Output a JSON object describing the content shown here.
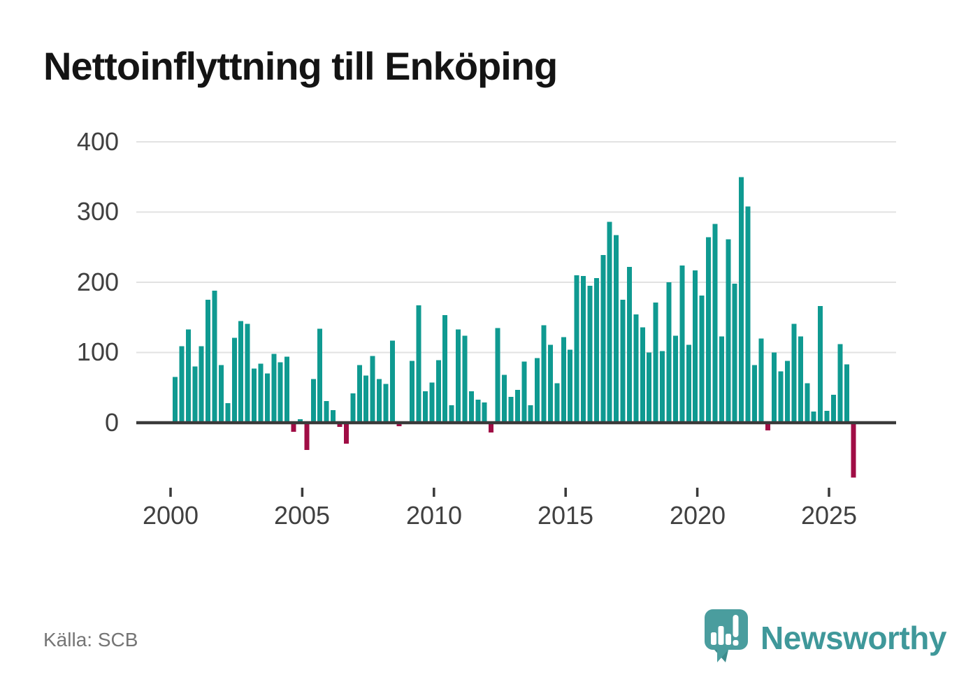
{
  "page": {
    "title": "Nettoinflyttning till Enköping",
    "source": "Källa: SCB",
    "branding": {
      "name": "Newsworthy",
      "icon": "newsworthy-speech-bubble-chart-icon"
    }
  },
  "chart_data": {
    "type": "bar",
    "title": "Nettoinflyttning till Enköping",
    "frequency": "quarterly",
    "x_tick_labels": [
      "2000",
      "2005",
      "2010",
      "2015",
      "2020",
      "2025"
    ],
    "y_tick_labels": [
      "400",
      "300",
      "200",
      "100",
      "0"
    ],
    "y_ticks": [
      400,
      300,
      200,
      100,
      0
    ],
    "ylim": [
      -90,
      420
    ],
    "grid": "horizontal",
    "legend": "none",
    "bar_color_positive": "#0f9a91",
    "bar_color_negative": "#a00d45",
    "quarterly": [
      {
        "year": 2000,
        "values": [
          65,
          109,
          133,
          80
        ]
      },
      {
        "year": 2001,
        "values": [
          109,
          175,
          188,
          82
        ]
      },
      {
        "year": 2002,
        "values": [
          28,
          121,
          145,
          141
        ]
      },
      {
        "year": 2003,
        "values": [
          77,
          84,
          70,
          98
        ]
      },
      {
        "year": 2004,
        "values": [
          86,
          94,
          -13,
          5
        ]
      },
      {
        "year": 2005,
        "values": [
          -39,
          62,
          134,
          31
        ]
      },
      {
        "year": 2006,
        "values": [
          18,
          -6,
          -30,
          42
        ]
      },
      {
        "year": 2007,
        "values": [
          82,
          67,
          95,
          62
        ]
      },
      {
        "year": 2008,
        "values": [
          55,
          117,
          -5,
          0
        ]
      },
      {
        "year": 2009,
        "values": [
          88,
          167,
          45,
          57
        ]
      },
      {
        "year": 2010,
        "values": [
          89,
          153,
          25,
          133
        ]
      },
      {
        "year": 2011,
        "values": [
          124,
          45,
          33,
          29
        ]
      },
      {
        "year": 2012,
        "values": [
          -14,
          135,
          68,
          37
        ]
      },
      {
        "year": 2013,
        "values": [
          47,
          87,
          25,
          92
        ]
      },
      {
        "year": 2014,
        "values": [
          139,
          111,
          56,
          122
        ]
      },
      {
        "year": 2015,
        "values": [
          104,
          210,
          209,
          195
        ]
      },
      {
        "year": 2016,
        "values": [
          206,
          239,
          286,
          267
        ]
      },
      {
        "year": 2017,
        "values": [
          175,
          222,
          154,
          136
        ]
      },
      {
        "year": 2018,
        "values": [
          100,
          171,
          102,
          200
        ]
      },
      {
        "year": 2019,
        "values": [
          124,
          224,
          111,
          217
        ]
      },
      {
        "year": 2020,
        "values": [
          181,
          264,
          283,
          123
        ]
      },
      {
        "year": 2021,
        "values": [
          261,
          198,
          350,
          308
        ]
      },
      {
        "year": 2022,
        "values": [
          82,
          120,
          -11,
          100
        ]
      },
      {
        "year": 2023,
        "values": [
          73,
          88,
          141,
          123
        ]
      },
      {
        "year": 2024,
        "values": [
          56,
          16,
          166,
          17
        ]
      },
      {
        "year": 2025,
        "values": [
          40,
          112,
          83,
          -78
        ]
      }
    ]
  }
}
